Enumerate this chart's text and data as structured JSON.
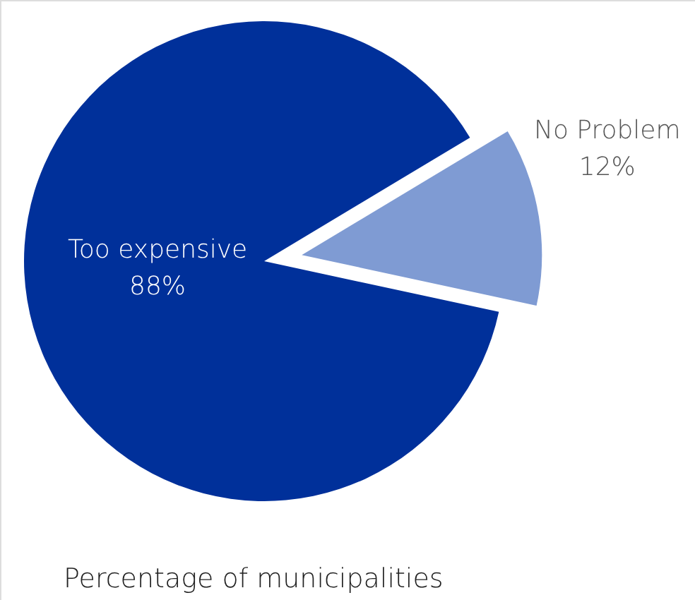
{
  "chart_data": {
    "type": "pie",
    "title": "Percentage of municipalities",
    "categories": [
      "No Problem",
      "Too expensive"
    ],
    "values": [
      12,
      88
    ],
    "value_labels": [
      "12%",
      "88%"
    ],
    "colors": [
      "#7f9bd3",
      "#00309a"
    ]
  }
}
